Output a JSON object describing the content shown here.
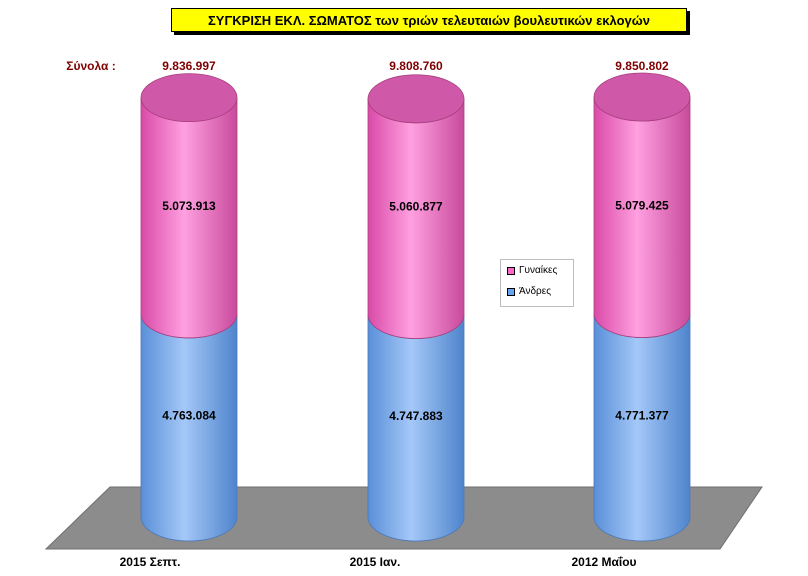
{
  "title": "ΣΥΓΚΡΙΣΗ ΕΚΛ. ΣΩΜΑΤΟΣ των τριών τελευταιών βουλευτικών εκλογών",
  "totals_label": "Σύνολα :",
  "colors": {
    "women": "#ff66cc",
    "men": "#66a6f0",
    "floor": "#8c8c8c",
    "total_text": "#7f0000",
    "title_bg": "#ffff00"
  },
  "chart_data": {
    "type": "bar",
    "stacked": true,
    "categories": [
      "2015 Σεπτ.",
      "2015 Ιαν.",
      "2012 Μαΐου"
    ],
    "series": [
      {
        "name": "Άνδρες",
        "values": [
          4763084,
          4747883,
          4771377
        ],
        "labels": [
          "4.763.084",
          "4.747.883",
          "4.771.377"
        ]
      },
      {
        "name": "Γυναίκες",
        "values": [
          5073913,
          5060877,
          5079425
        ],
        "labels": [
          "5.073.913",
          "5.060.877",
          "5.079.425"
        ]
      }
    ],
    "totals": [
      9836997,
      9808760,
      9850802
    ],
    "total_labels": [
      "9.836.997",
      "9.808.760",
      "9.850.802"
    ],
    "legend": [
      "Γυναίκες",
      "Άνδρες"
    ],
    "legend_position": "right",
    "grid": false
  }
}
